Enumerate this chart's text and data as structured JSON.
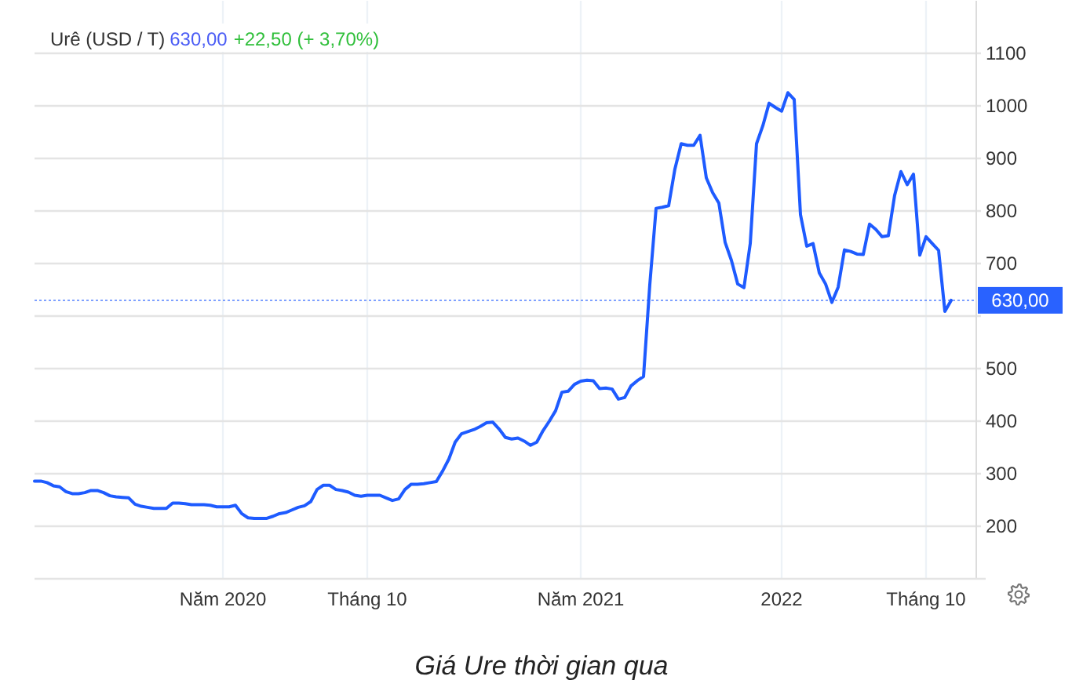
{
  "chart_data": {
    "type": "line",
    "title": "Urê (USD / T)",
    "annotations": [
      "630,00",
      "+22,50 (+ 3,70%)",
      "Giá Ure thời gian qua"
    ],
    "categories": [
      null,
      null,
      null,
      null,
      null,
      null,
      null,
      null,
      null,
      null,
      null,
      null,
      null,
      null,
      null,
      null,
      null,
      null,
      null,
      null,
      null,
      null,
      null,
      null,
      null,
      null,
      null,
      null,
      null,
      null,
      "Năm 2020",
      null,
      null,
      null,
      null,
      null,
      null,
      null,
      null,
      null,
      null,
      null,
      null,
      null,
      null,
      null,
      null,
      null,
      null,
      null,
      null,
      null,
      null,
      "Tháng 10",
      null,
      null,
      null,
      null,
      null,
      null,
      null,
      null,
      null,
      null,
      null,
      null,
      null,
      null,
      null,
      null,
      null,
      null,
      null,
      null,
      null,
      null,
      null,
      null,
      null,
      null,
      null,
      null,
      null,
      null,
      null,
      null,
      null,
      "Năm 2021",
      null,
      null,
      null,
      null,
      null,
      null,
      null,
      null,
      null,
      null,
      null,
      null,
      null,
      null,
      null,
      null,
      null,
      null,
      null,
      null,
      null,
      null,
      null,
      null,
      null,
      null,
      null,
      null,
      null,
      null,
      null,
      "2022",
      null,
      null,
      null,
      null,
      null,
      null,
      null,
      null,
      null,
      null,
      null,
      null,
      null,
      null,
      null,
      null,
      null,
      null,
      null,
      null,
      null,
      null,
      "Tháng 10",
      null,
      null,
      null,
      null,
      null,
      null,
      null,
      null
    ],
    "values": [
      286,
      286,
      283,
      277,
      275,
      266,
      262,
      262,
      264,
      268,
      268,
      264,
      258,
      256,
      255,
      254,
      242,
      238,
      236,
      234,
      234,
      234,
      244,
      244,
      243,
      241,
      241,
      241,
      240,
      237,
      237,
      237,
      240,
      224,
      216,
      215,
      215,
      215,
      219,
      224,
      226,
      231,
      236,
      239,
      247,
      270,
      278,
      278,
      270,
      268,
      265,
      259,
      257,
      259,
      259,
      259,
      254,
      249,
      252,
      270,
      280,
      280,
      281,
      283,
      285,
      305,
      328,
      360,
      376,
      380,
      384,
      390,
      397,
      398,
      385,
      369,
      366,
      368,
      362,
      354,
      360,
      382,
      400,
      420,
      455,
      457,
      470,
      476,
      478,
      477,
      462,
      463,
      461,
      442,
      445,
      467,
      477,
      485,
      660,
      805,
      807,
      810,
      880,
      928,
      925,
      925,
      944,
      863,
      835,
      815,
      740,
      706,
      661,
      654,
      738,
      928,
      962,
      1005,
      997,
      990,
      1025,
      1012,
      793,
      733,
      738,
      682,
      661,
      626,
      655,
      726,
      723,
      718,
      717,
      775,
      765,
      751,
      753,
      830,
      875,
      850,
      870,
      716,
      751,
      738,
      725,
      609,
      630,
      null,
      null,
      null,
      null
    ],
    "color": "#1e5bff",
    "ylim": [
      100,
      1200
    ],
    "yticks": [
      200,
      300,
      400,
      500,
      {
        "value": 600,
        "label": null
      },
      700,
      800,
      900,
      1000,
      1100
    ],
    "grid": true,
    "ref_lines": [
      {
        "axis": "y",
        "value": 630,
        "label": "630,00",
        "color": "#2962ff",
        "line_style": "dotted"
      }
    ]
  }
}
